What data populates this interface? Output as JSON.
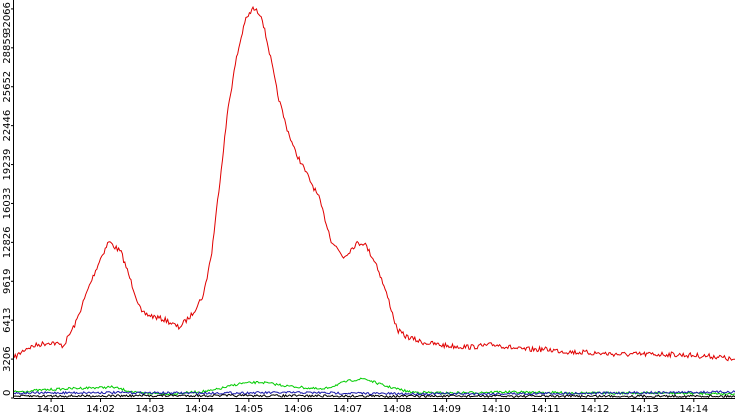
{
  "chart_data": {
    "type": "line",
    "title": "",
    "xlabel": "",
    "ylabel": "",
    "x_range": [
      "14:00:15",
      "14:14:50"
    ],
    "ylim": [
      0,
      32800
    ],
    "yticks": [
      0,
      3206,
      6413,
      9619,
      12826,
      16033,
      19239,
      22446,
      25652,
      28859,
      32066
    ],
    "xticks": [
      "14:01",
      "14:02",
      "14:03",
      "14:04",
      "14:05",
      "14:06",
      "14:07",
      "14:08",
      "14:09",
      "14:10",
      "14:11",
      "14:12",
      "14:13",
      "14:14"
    ],
    "grid": false,
    "legend": "none",
    "series": [
      {
        "color": "#e00000",
        "points": [
          [
            "14:00:15",
            3300
          ],
          [
            "14:00:30",
            4100
          ],
          [
            "14:00:45",
            4400
          ],
          [
            "14:01:00",
            4600
          ],
          [
            "14:01:15",
            4300
          ],
          [
            "14:01:30",
            6200
          ],
          [
            "14:01:45",
            9000
          ],
          [
            "14:02:00",
            11500
          ],
          [
            "14:02:10",
            12900
          ],
          [
            "14:02:25",
            12000
          ],
          [
            "14:02:40",
            9000
          ],
          [
            "14:02:50",
            7000
          ],
          [
            "14:03:05",
            6700
          ],
          [
            "14:03:20",
            6400
          ],
          [
            "14:03:35",
            5800
          ],
          [
            "14:03:50",
            6800
          ],
          [
            "14:04:05",
            8500
          ],
          [
            "14:04:15",
            12000
          ],
          [
            "14:04:25",
            18000
          ],
          [
            "14:04:35",
            24000
          ],
          [
            "14:04:45",
            28000
          ],
          [
            "14:04:55",
            31000
          ],
          [
            "14:05:05",
            32100
          ],
          [
            "14:05:15",
            31600
          ],
          [
            "14:05:25",
            28500
          ],
          [
            "14:05:35",
            25000
          ],
          [
            "14:05:45",
            22500
          ],
          [
            "14:05:55",
            20500
          ],
          [
            "14:06:10",
            18500
          ],
          [
            "14:06:25",
            16500
          ],
          [
            "14:06:40",
            13000
          ],
          [
            "14:06:55",
            11600
          ],
          [
            "14:07:10",
            12700
          ],
          [
            "14:07:20",
            12800
          ],
          [
            "14:07:35",
            11000
          ],
          [
            "14:07:50",
            8000
          ],
          [
            "14:08:00",
            5600
          ],
          [
            "14:08:10",
            5100
          ],
          [
            "14:08:30",
            4600
          ],
          [
            "14:09:00",
            4300
          ],
          [
            "14:09:30",
            4200
          ],
          [
            "14:10:00",
            4400
          ],
          [
            "14:10:30",
            4000
          ],
          [
            "14:11:00",
            4000
          ],
          [
            "14:11:30",
            3800
          ],
          [
            "14:12:00",
            3700
          ],
          [
            "14:12:30",
            3600
          ],
          [
            "14:13:00",
            3600
          ],
          [
            "14:13:30",
            3600
          ],
          [
            "14:14:00",
            3500
          ],
          [
            "14:14:30",
            3400
          ],
          [
            "14:14:50",
            3100
          ]
        ]
      },
      {
        "color": "#00cc00",
        "points": [
          [
            "14:00:15",
            500
          ],
          [
            "14:01:00",
            700
          ],
          [
            "14:01:30",
            800
          ],
          [
            "14:02:15",
            900
          ],
          [
            "14:02:45",
            400
          ],
          [
            "14:03:30",
            350
          ],
          [
            "14:04:15",
            600
          ],
          [
            "14:04:50",
            1200
          ],
          [
            "14:05:15",
            1300
          ],
          [
            "14:05:45",
            1000
          ],
          [
            "14:06:30",
            700
          ],
          [
            "14:07:00",
            1400
          ],
          [
            "14:07:20",
            1600
          ],
          [
            "14:07:45",
            1000
          ],
          [
            "14:08:15",
            500
          ],
          [
            "14:09:00",
            400
          ],
          [
            "14:10:00",
            500
          ],
          [
            "14:11:00",
            450
          ],
          [
            "14:12:00",
            400
          ],
          [
            "14:13:00",
            420
          ],
          [
            "14:14:00",
            380
          ],
          [
            "14:14:50",
            350
          ]
        ]
      },
      {
        "color": "#1a1aaa",
        "points": [
          [
            "14:00:15",
            400
          ],
          [
            "14:02:00",
            450
          ],
          [
            "14:04:00",
            400
          ],
          [
            "14:06:00",
            450
          ],
          [
            "14:08:00",
            350
          ],
          [
            "14:10:00",
            350
          ],
          [
            "14:12:00",
            400
          ],
          [
            "14:14:50",
            500
          ]
        ]
      },
      {
        "color": "#000000",
        "points": [
          [
            "14:00:15",
            150
          ],
          [
            "14:04:00",
            200
          ],
          [
            "14:08:00",
            150
          ],
          [
            "14:14:50",
            150
          ]
        ]
      }
    ]
  }
}
